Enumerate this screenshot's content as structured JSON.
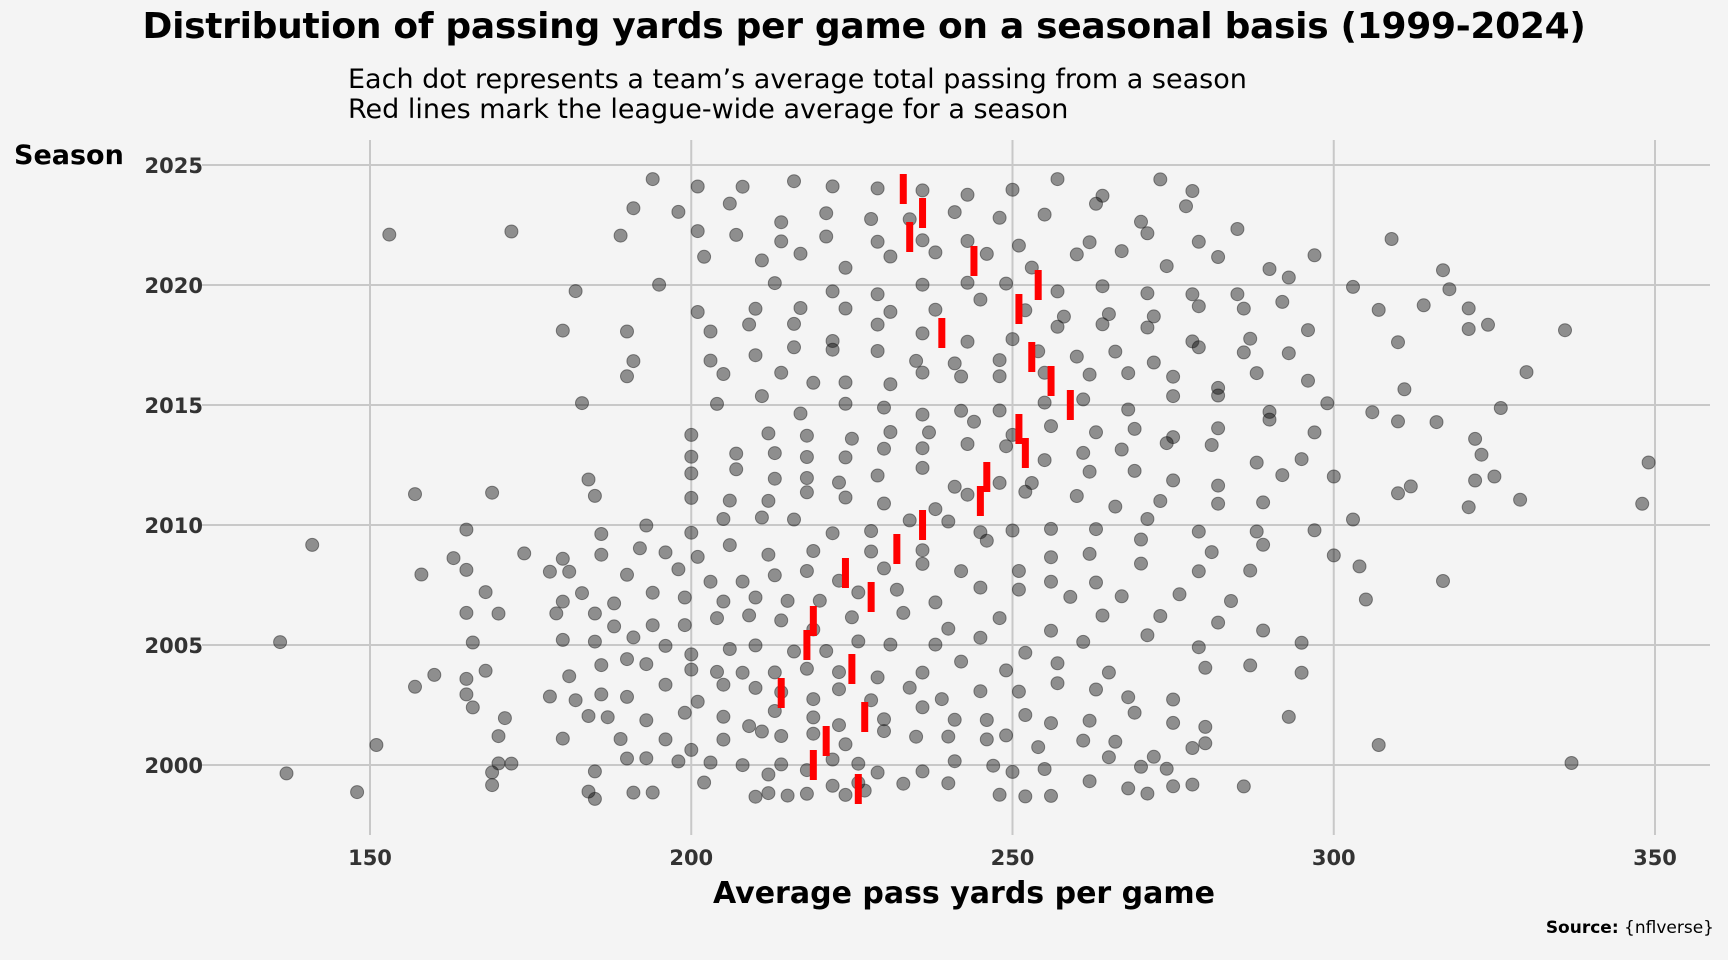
{
  "header": {
    "title": "Distribution of passing yards per game on a seasonal basis (1999-2024)",
    "subtitle_line1": "Each dot represents a team’s average total passing from a season",
    "subtitle_line2": "Red lines mark the league-wide average for a season"
  },
  "footer": {
    "source_label": "Source:",
    "source_value": "{nflverse}"
  },
  "colors": {
    "background": "#f4f4f4",
    "grid": "#c8c8c8",
    "dot": "#000000",
    "average_line": "#ff0000"
  },
  "chart_data": {
    "type": "scatter",
    "title": "Distribution of passing yards per game on a seasonal basis (1999-2024)",
    "xlabel": "Average pass yards per game",
    "ylabel": "Season",
    "xlim": [
      125,
      360
    ],
    "ylim": [
      1997.5,
      2026
    ],
    "x_ticks": [
      150,
      200,
      250,
      300,
      350
    ],
    "y_ticks": [
      2000,
      2005,
      2010,
      2015,
      2020,
      2025
    ],
    "grid": true,
    "series": [
      {
        "name": "",
        "kind": "team-season dots",
        "points": [
          {
            "season": 1999,
            "values": [
              148,
              169,
              184,
              185,
              191,
              194,
              202,
              210,
              212,
              215,
              218,
              222,
              224,
              226,
              227,
              233,
              240,
              248,
              252,
              256,
              262,
              268,
              271,
              275,
              278,
              286
            ]
          },
          {
            "season": 2000,
            "values": [
              137,
              169,
              170,
              172,
              185,
              190,
              193,
              198,
              203,
              208,
              212,
              214,
              218,
              222,
              226,
              229,
              236,
              241,
              247,
              250,
              255,
              265,
              270,
              272,
              274,
              337
            ]
          },
          {
            "season": 2001,
            "values": [
              151,
              170,
              180,
              189,
              196,
              200,
              205,
              211,
              214,
              219,
              224,
              230,
              235,
              240,
              246,
              249,
              254,
              261,
              266,
              278,
              280,
              307
            ]
          },
          {
            "season": 2002,
            "values": [
              166,
              171,
              184,
              187,
              193,
              199,
              205,
              209,
              213,
              219,
              223,
              230,
              236,
              241,
              246,
              252,
              256,
              262,
              269,
              275,
              280,
              293
            ]
          },
          {
            "season": 2003,
            "values": [
              157,
              165,
              178,
              182,
              186,
              190,
              196,
              201,
              205,
              210,
              214,
              219,
              223,
              228,
              234,
              239,
              245,
              251,
              257,
              263,
              268,
              275
            ]
          },
          {
            "season": 2004,
            "values": [
              160,
              165,
              168,
              181,
              186,
              190,
              193,
              200,
              204,
              208,
              213,
              218,
              223,
              229,
              236,
              242,
              249,
              257,
              265,
              280,
              287,
              295
            ]
          },
          {
            "season": 2005,
            "values": [
              136,
              166,
              180,
              185,
              191,
              196,
              200,
              206,
              210,
              216,
              221,
              226,
              231,
              238,
              245,
              252,
              261,
              271,
              279,
              295
            ]
          },
          {
            "season": 2006,
            "values": [
              165,
              170,
              179,
              185,
              188,
              194,
              199,
              204,
              209,
              214,
              219,
              225,
              233,
              240,
              248,
              256,
              264,
              273,
              282,
              289
            ]
          },
          {
            "season": 2007,
            "values": [
              168,
              180,
              183,
              188,
              194,
              199,
              205,
              210,
              215,
              220,
              226,
              232,
              238,
              245,
              251,
              259,
              267,
              276,
              284,
              305
            ]
          },
          {
            "season": 2008,
            "values": [
              158,
              165,
              178,
              181,
              190,
              198,
              203,
              208,
              213,
              218,
              223,
              230,
              236,
              242,
              251,
              256,
              263,
              270,
              279,
              287,
              304,
              317
            ]
          },
          {
            "season": 2009,
            "values": [
              141,
              163,
              174,
              180,
              186,
              192,
              196,
              201,
              206,
              212,
              219,
              228,
              236,
              246,
              256,
              262,
              270,
              281,
              289,
              300
            ]
          },
          {
            "season": 2010,
            "values": [
              165,
              186,
              193,
              200,
              205,
              211,
              216,
              222,
              228,
              234,
              240,
              245,
              250,
              256,
              263,
              271,
              279,
              288,
              297,
              303
            ]
          },
          {
            "season": 2011,
            "values": [
              157,
              169,
              185,
              200,
              206,
              212,
              218,
              224,
              230,
              238,
              243,
              252,
              260,
              266,
              273,
              282,
              289,
              310,
              321,
              329,
              348
            ]
          },
          {
            "season": 2012,
            "values": [
              184,
              200,
              207,
              213,
              218,
              223,
              229,
              236,
              241,
              248,
              253,
              262,
              269,
              275,
              282,
              292,
              300,
              312,
              322,
              325
            ]
          },
          {
            "season": 2013,
            "values": [
              200,
              207,
              213,
              218,
              224,
              230,
              236,
              243,
              249,
              255,
              261,
              267,
              274,
              281,
              288,
              295,
              323,
              349
            ]
          },
          {
            "season": 2014,
            "values": [
              200,
              212,
              218,
              225,
              231,
              237,
              244,
              250,
              256,
              263,
              269,
              275,
              282,
              290,
              297,
              310,
              316,
              322
            ]
          },
          {
            "season": 2015,
            "values": [
              183,
              204,
              211,
              217,
              224,
              230,
              236,
              242,
              248,
              255,
              261,
              268,
              275,
              282,
              290,
              299,
              306,
              326
            ]
          },
          {
            "season": 2016,
            "values": [
              190,
              205,
              214,
              219,
              224,
              231,
              236,
              242,
              248,
              255,
              262,
              268,
              275,
              282,
              288,
              296,
              311,
              330
            ]
          },
          {
            "season": 2017,
            "values": [
              191,
              203,
              210,
              216,
              222,
              229,
              235,
              241,
              248,
              254,
              260,
              266,
              272,
              279,
              286,
              293
            ]
          },
          {
            "season": 2018,
            "values": [
              180,
              190,
              203,
              209,
              216,
              222,
              229,
              236,
              243,
              250,
              257,
              264,
              271,
              278,
              287,
              296,
              310,
              321,
              324,
              336
            ]
          },
          {
            "season": 2019,
            "values": [
              201,
              210,
              217,
              224,
              231,
              238,
              245,
              252,
              258,
              265,
              272,
              279,
              286,
              292,
              307,
              314,
              321
            ]
          },
          {
            "season": 2020,
            "values": [
              182,
              195,
              213,
              222,
              229,
              236,
              243,
              249,
              257,
              264,
              271,
              278,
              285,
              293,
              303,
              318
            ]
          },
          {
            "season": 2021,
            "values": [
              202,
              211,
              217,
              224,
              231,
              238,
              246,
              253,
              260,
              267,
              274,
              282,
              290,
              297,
              317
            ]
          },
          {
            "season": 2022,
            "values": [
              153,
              172,
              189,
              201,
              207,
              214,
              221,
              229,
              236,
              243,
              251,
              262,
              271,
              279,
              285,
              309
            ]
          },
          {
            "season": 2023,
            "values": [
              191,
              198,
              206,
              214,
              221,
              228,
              234,
              241,
              248,
              255,
              263,
              270,
              277
            ]
          },
          {
            "season": 2024,
            "values": [
              194,
              201,
              208,
              216,
              222,
              229,
              236,
              243,
              250,
              257,
              264,
              273,
              278
            ]
          }
        ]
      },
      {
        "name": "",
        "kind": "league-wide average",
        "points": [
          {
            "season": 1999,
            "value": 226
          },
          {
            "season": 2000,
            "value": 219
          },
          {
            "season": 2001,
            "value": 221
          },
          {
            "season": 2002,
            "value": 227
          },
          {
            "season": 2003,
            "value": 214
          },
          {
            "season": 2004,
            "value": 225
          },
          {
            "season": 2005,
            "value": 218
          },
          {
            "season": 2006,
            "value": 219
          },
          {
            "season": 2007,
            "value": 228
          },
          {
            "season": 2008,
            "value": 224
          },
          {
            "season": 2009,
            "value": 232
          },
          {
            "season": 2010,
            "value": 236
          },
          {
            "season": 2011,
            "value": 245
          },
          {
            "season": 2012,
            "value": 246
          },
          {
            "season": 2013,
            "value": 252
          },
          {
            "season": 2014,
            "value": 251
          },
          {
            "season": 2015,
            "value": 259
          },
          {
            "season": 2016,
            "value": 256
          },
          {
            "season": 2017,
            "value": 253
          },
          {
            "season": 2018,
            "value": 239
          },
          {
            "season": 2019,
            "value": 251
          },
          {
            "season": 2020,
            "value": 254
          },
          {
            "season": 2021,
            "value": 244
          },
          {
            "season": 2022,
            "value": 234
          },
          {
            "season": 2023,
            "value": 236
          },
          {
            "season": 2024,
            "value": 233
          }
        ]
      }
    ]
  }
}
